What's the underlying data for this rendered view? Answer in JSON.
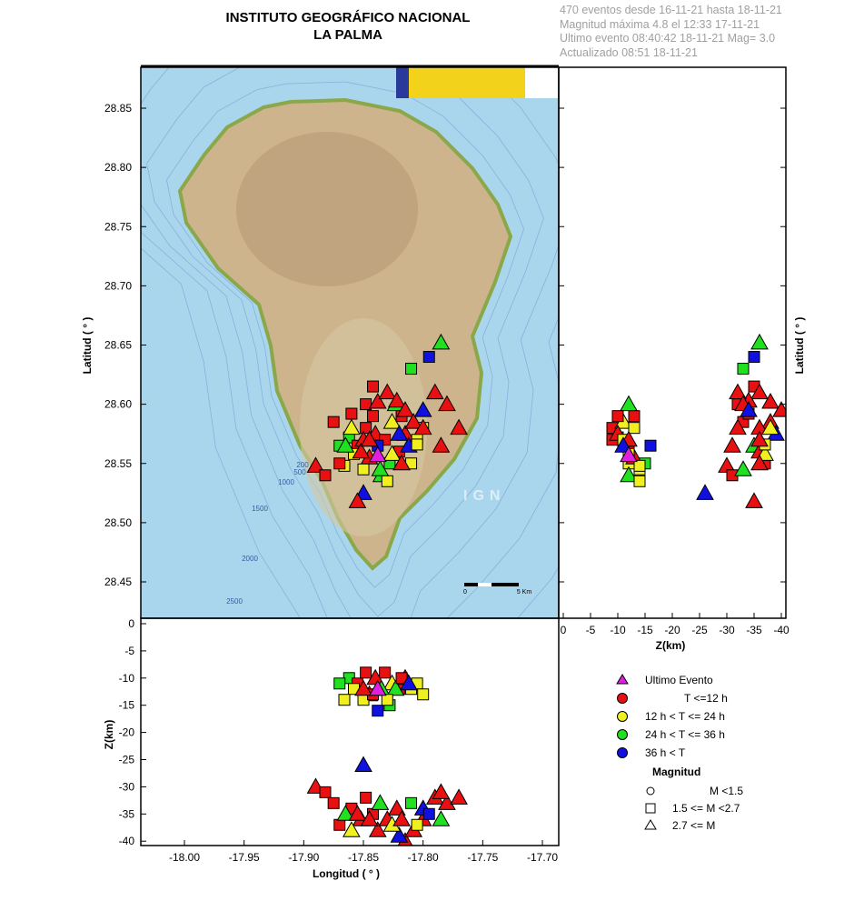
{
  "header": {
    "title1": "INSTITUTO GEOGRÁFICO NACIONAL",
    "title2": "LA PALMA"
  },
  "info": [
    "470 eventos desde 16-11-21 hasta 18-11-21",
    "Magnitud máxima 4.8 el 12:33 17-11-21",
    "Ultimo evento   08:40:42 18-11-21  Mag= 3.0",
    "Actualizado   08:51  18-11-21"
  ],
  "map": {
    "watermark": "IGN",
    "scale_labels": [
      "0",
      "5 Km"
    ],
    "bathymetry_labels": [
      "200",
      "500",
      "1000",
      "1500",
      "2000",
      "2500"
    ],
    "colors": {
      "sea": "#a9d6ec",
      "land": "#cdb48c",
      "coast": "#8aa849",
      "contour": "#7a9fd8"
    }
  },
  "axes": {
    "lat_label": "Latitud ( ° )",
    "lon_label": "Longitud ( ° )",
    "z_label": "Z(km)",
    "lon_ticks": [
      "-18.00",
      "-17.95",
      "-17.90",
      "-17.85",
      "-17.80",
      "-17.75",
      "-17.70"
    ],
    "lat_ticks": [
      "28.85",
      "28.80",
      "28.75",
      "28.70",
      "28.65",
      "28.60",
      "28.55",
      "28.50",
      "28.45"
    ],
    "z_ticks_right": [
      "0",
      "-5",
      "-10",
      "-15",
      "-20",
      "-25",
      "-30",
      "-35",
      "-40"
    ],
    "z_ticks_bottom": [
      "0",
      "-5",
      "-10",
      "-15",
      "-20",
      "-25",
      "-30",
      "-35",
      "-40"
    ]
  },
  "legend": {
    "items": [
      {
        "label": "Ultimo Evento",
        "color": "#e020e0",
        "shape": "triangle"
      },
      {
        "label": "T <=12 h",
        "color": "#e81010",
        "shape": "circle"
      },
      {
        "label": "12 h  < T <= 24 h",
        "color": "#f0f020",
        "shape": "circle"
      },
      {
        "label": "24 h  < T <= 36 h",
        "color": "#20e020",
        "shape": "circle"
      },
      {
        "label": "36 h <  T",
        "color": "#1010e0",
        "shape": "circle"
      }
    ],
    "mag_title": "Magnitud",
    "mag_items": [
      {
        "label": "M <1.5",
        "shape": "circle"
      },
      {
        "label": "1.5 <= M <2.7",
        "shape": "square"
      },
      {
        "label": "2.7 <= M",
        "shape": "triangle"
      }
    ]
  },
  "chart_data": {
    "type": "scatter",
    "last_event": {
      "lon": -17.838,
      "lat": 28.557,
      "z": -12,
      "mag": 3.0
    },
    "classes": {
      "r": "#e81010",
      "y": "#f0f020",
      "g": "#20e020",
      "b": "#1010e0"
    },
    "events": [
      [
        -17.862,
        28.572,
        -10,
        "g",
        1
      ],
      [
        -17.855,
        28.565,
        -11,
        "r",
        1
      ],
      [
        -17.848,
        28.58,
        -9,
        "r",
        1
      ],
      [
        -17.84,
        28.575,
        -10,
        "r",
        2
      ],
      [
        -17.832,
        28.57,
        -9,
        "r",
        1
      ],
      [
        -17.826,
        28.585,
        -11,
        "y",
        2
      ],
      [
        -17.82,
        28.56,
        -12,
        "r",
        1
      ],
      [
        -17.815,
        28.575,
        -10,
        "r",
        2
      ],
      [
        -17.81,
        28.55,
        -12,
        "y",
        1
      ],
      [
        -17.845,
        28.555,
        -13,
        "r",
        2
      ],
      [
        -17.85,
        28.545,
        -14,
        "y",
        1
      ],
      [
        -17.835,
        28.54,
        -12,
        "g",
        2
      ],
      [
        -17.828,
        28.55,
        -15,
        "g",
        1
      ],
      [
        -17.858,
        28.558,
        -12,
        "y",
        1
      ],
      [
        -17.866,
        28.548,
        -14,
        "y",
        1
      ],
      [
        -17.87,
        28.565,
        -11,
        "g",
        1
      ],
      [
        -17.805,
        28.57,
        -11,
        "y",
        1
      ],
      [
        -17.8,
        28.58,
        -13,
        "y",
        1
      ],
      [
        -17.838,
        28.565,
        -16,
        "b",
        1
      ],
      [
        -17.842,
        28.59,
        -13,
        "r",
        1
      ],
      [
        -17.823,
        28.6,
        -12,
        "g",
        2
      ],
      [
        -17.818,
        28.59,
        -10,
        "r",
        1
      ],
      [
        -17.85,
        28.57,
        -12,
        "r",
        2
      ],
      [
        -17.83,
        28.535,
        -14,
        "y",
        1
      ],
      [
        -17.812,
        28.565,
        -11,
        "b",
        2
      ],
      [
        -17.89,
        28.548,
        -30,
        "r",
        2
      ],
      [
        -17.882,
        28.54,
        -31,
        "r",
        1
      ],
      [
        -17.875,
        28.585,
        -33,
        "r",
        1
      ],
      [
        -17.87,
        28.55,
        -37,
        "r",
        1
      ],
      [
        -17.86,
        28.592,
        -34,
        "r",
        1
      ],
      [
        -17.865,
        28.565,
        -35,
        "g",
        2
      ],
      [
        -17.852,
        28.56,
        -36,
        "r",
        2
      ],
      [
        -17.848,
        28.6,
        -32,
        "r",
        1
      ],
      [
        -17.842,
        28.615,
        -35,
        "r",
        1
      ],
      [
        -17.838,
        28.602,
        -38,
        "r",
        2
      ],
      [
        -17.83,
        28.61,
        -36,
        "r",
        2
      ],
      [
        -17.822,
        28.603,
        -34,
        "r",
        2
      ],
      [
        -17.815,
        28.595,
        -40,
        "r",
        2
      ],
      [
        -17.808,
        28.585,
        -38,
        "r",
        2
      ],
      [
        -17.8,
        28.58,
        -36,
        "r",
        2
      ],
      [
        -17.79,
        28.61,
        -32,
        "r",
        2
      ],
      [
        -17.78,
        28.6,
        -33,
        "r",
        2
      ],
      [
        -17.785,
        28.565,
        -31,
        "r",
        2
      ],
      [
        -17.8,
        28.595,
        -34,
        "b",
        2
      ],
      [
        -17.81,
        28.63,
        -33,
        "g",
        1
      ],
      [
        -17.795,
        28.64,
        -35,
        "b",
        1
      ],
      [
        -17.785,
        28.652,
        -36,
        "g",
        2
      ],
      [
        -17.85,
        28.525,
        -26,
        "b",
        2
      ],
      [
        -17.855,
        28.518,
        -35,
        "r",
        2
      ],
      [
        -17.82,
        28.575,
        -39,
        "b",
        2
      ],
      [
        -17.826,
        28.558,
        -37,
        "y",
        2
      ],
      [
        -17.836,
        28.545,
        -33,
        "g",
        2
      ],
      [
        -17.818,
        28.55,
        -36,
        "r",
        2
      ],
      [
        -17.805,
        28.566,
        -37,
        "y",
        1
      ],
      [
        -17.77,
        28.58,
        -32,
        "r",
        2
      ],
      [
        -17.86,
        28.58,
        -38,
        "y",
        2
      ],
      [
        -17.845,
        28.57,
        -36,
        "r",
        2
      ]
    ],
    "xlim": [
      -18.04,
      -17.68
    ],
    "ylim": [
      28.415,
      28.885
    ],
    "zlim": [
      0,
      -41
    ]
  }
}
